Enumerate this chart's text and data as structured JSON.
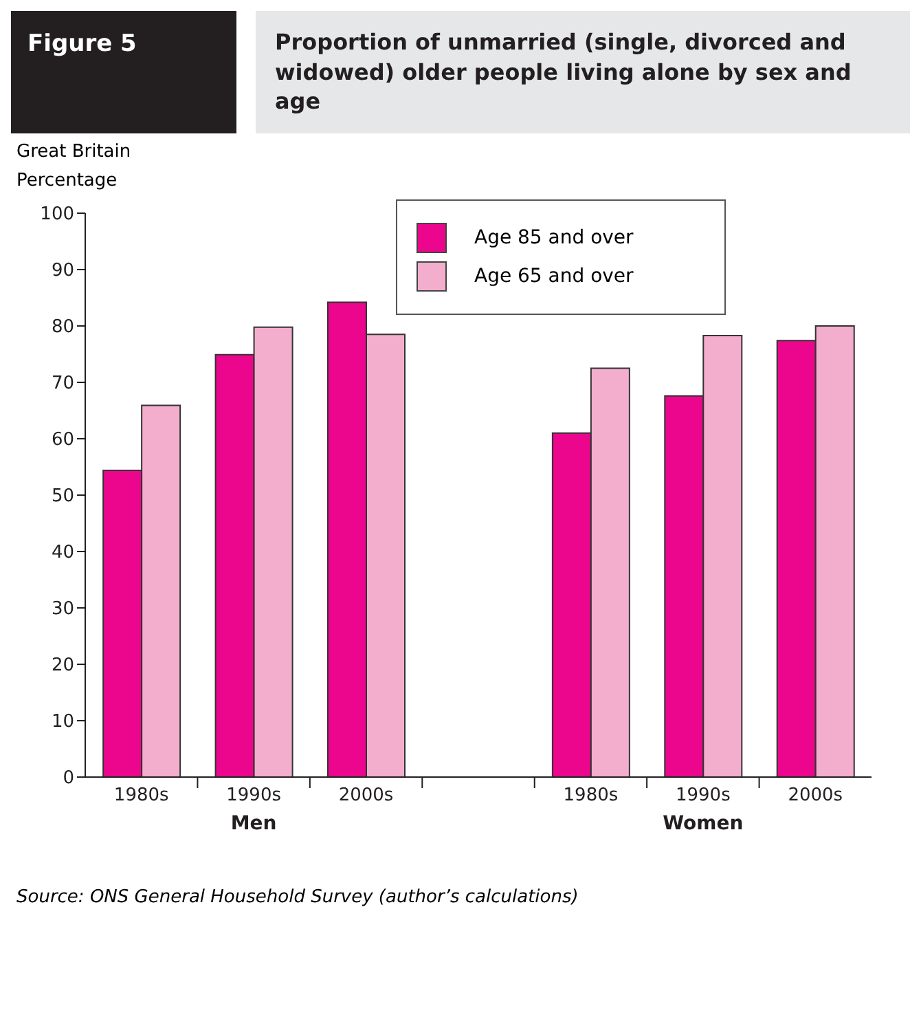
{
  "chart_data": {
    "type": "bar",
    "title": "Figure 5",
    "subtitle": "Proportion of unmarried (single, divorced and widowed) older people living alone by sex and age",
    "ylabel": "Percentage",
    "categories": [
      "1980s",
      "1990s",
      "2000s",
      null,
      "1980s",
      "1990s",
      "2000s"
    ],
    "series": [
      {
        "name": "Age 85 and over",
        "color": "#ec068d",
        "values": [
          54.4,
          74.9,
          84.2,
          null,
          61.0,
          67.6,
          77.4
        ]
      },
      {
        "name": "Age 65 and over",
        "color": "#f4aecd",
        "values": [
          65.9,
          79.8,
          78.5,
          null,
          72.5,
          78.3,
          80.0
        ]
      }
    ],
    "ylim": [
      0,
      100
    ],
    "yticks": [
      0,
      10,
      20,
      30,
      40,
      50,
      60,
      70,
      80,
      90,
      100
    ],
    "annotations": [
      "Great Britain",
      "Men",
      "Women",
      "Source: ONS General Household Survey (author’s calculations)"
    ],
    "grid": false,
    "legend": "top right"
  }
}
